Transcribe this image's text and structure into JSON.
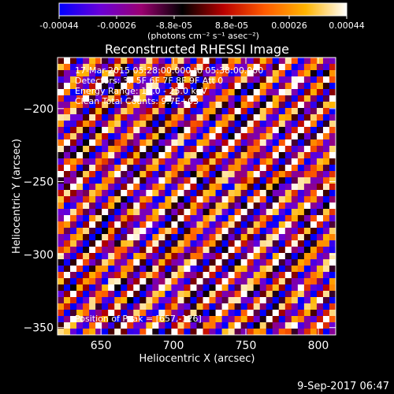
{
  "chart_data": {
    "type": "heatmap",
    "title": "Reconstructed RHESSI Image",
    "xlabel": "Heliocentric X (arcsec)",
    "ylabel": "Heliocentric Y (arcsec)",
    "xlim": [
      620,
      812
    ],
    "ylim": [
      -355,
      -165
    ],
    "x_ticks": [
      650,
      700,
      750,
      800
    ],
    "y_ticks": [
      -350,
      -300,
      -250,
      -200
    ],
    "colorbar": {
      "min": -0.00044,
      "max": 0.00044,
      "ticks": [
        "-0.00044",
        "-0.00026",
        "-8.8e-05",
        "8.8e-05",
        "0.00026",
        "0.00044"
      ],
      "unit_label": "(photons cm⁻² s⁻¹ asec⁻²)",
      "colormap": [
        "#0000ff",
        "#6a00d8",
        "#9a0070",
        "#000000",
        "#b80000",
        "#ff5a00",
        "#ffb400",
        "#ffffff"
      ]
    },
    "annotations": [
      "17-Mar-2015 05:28:00.000 to 05:38:00.000",
      "Detectors: 3F 5F 6F 7F 8F 9F Att 0",
      "Energy Range: 12.0 - 25.0 keV",
      "Clean     Total Counts: 9.7E+03"
    ],
    "peak_label": "Position of Peak = [657,-126]",
    "pattern": {
      "description": "diagonal fringe pattern",
      "grid_cols": 44,
      "grid_rows": 44
    }
  },
  "footer": {
    "timestamp": "9-Sep-2017 06:47"
  }
}
